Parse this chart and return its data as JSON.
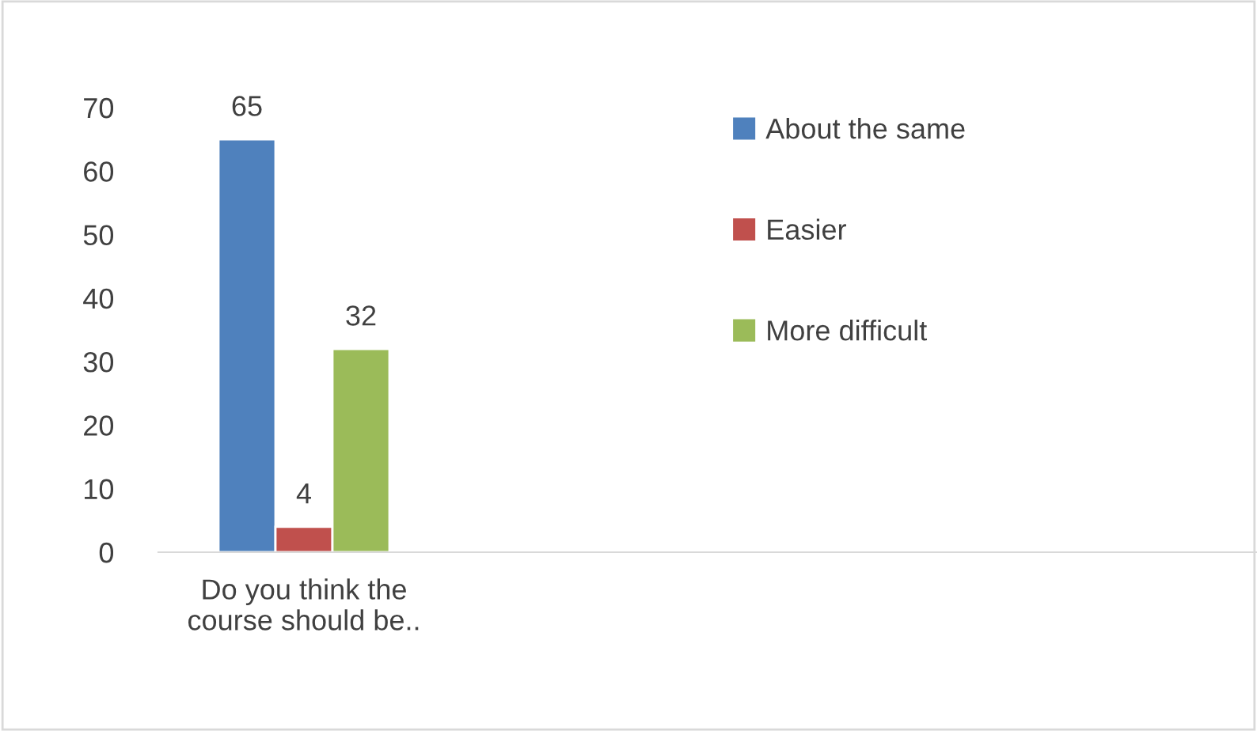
{
  "chart_data": {
    "type": "bar",
    "categories": [
      "Do you think the course should be.."
    ],
    "series": [
      {
        "name": "About the same",
        "color": "#4f81bd",
        "values": [
          65
        ]
      },
      {
        "name": "Easier",
        "color": "#c0504d",
        "values": [
          4
        ]
      },
      {
        "name": "More difficult",
        "color": "#9bbb59",
        "values": [
          32
        ]
      }
    ],
    "ylim": [
      0,
      70
    ],
    "yticks": [
      0,
      10,
      20,
      30,
      40,
      50,
      60,
      70
    ],
    "data_labels": true,
    "grid": false,
    "legend": "right"
  }
}
